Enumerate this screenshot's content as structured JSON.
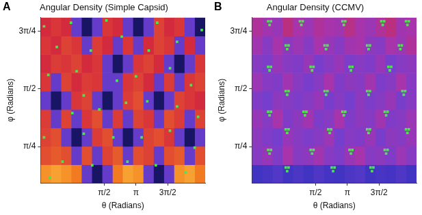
{
  "chart_data": [
    {
      "type": "heatmap",
      "annotation": "A",
      "title": "Angular Density (Simple Capsid)",
      "x_label": "θ (Radians)",
      "y_label": "φ (Radians)",
      "xlim": [
        -1.57,
        6.56
      ],
      "ylim": [
        0.29,
        2.54
      ],
      "xticks": [
        {
          "value": 1.5708,
          "label": "π/2"
        },
        {
          "value": 3.1416,
          "label": "π"
        },
        {
          "value": 4.7124,
          "label": "3π/2"
        }
      ],
      "yticks": [
        {
          "value": 0.7854,
          "label": "π/4"
        },
        {
          "value": 1.5708,
          "label": "π/2"
        },
        {
          "value": 2.3562,
          "label": "3π/4"
        }
      ],
      "grid": false,
      "cells": {
        "x_edges": [
          -1.57,
          -1.06,
          -0.55,
          -0.05,
          0.46,
          0.97,
          1.48,
          1.99,
          2.49,
          3.0,
          3.51,
          4.02,
          4.53,
          5.03,
          5.54,
          6.05,
          6.56
        ],
        "y_edges": [
          0.29,
          0.54,
          0.79,
          1.04,
          1.29,
          1.54,
          1.79,
          2.04,
          2.29,
          2.54
        ],
        "values": [
          [
            0.88,
            0.9,
            0.88,
            0.85,
            0.4,
            0.05,
            0.4,
            0.85,
            0.9,
            0.88,
            0.4,
            0.05,
            0.4,
            0.88,
            0.9,
            0.85
          ],
          [
            0.78,
            0.8,
            0.78,
            0.4,
            0.78,
            0.4,
            0.76,
            0.8,
            0.4,
            0.78,
            0.76,
            0.4,
            0.78,
            0.8,
            0.4,
            0.78
          ],
          [
            0.76,
            0.78,
            0.4,
            0.05,
            0.4,
            0.75,
            0.78,
            0.4,
            0.05,
            0.4,
            0.76,
            0.78,
            0.74,
            0.4,
            0.05,
            0.4
          ],
          [
            0.75,
            0.4,
            0.76,
            0.4,
            0.74,
            0.78,
            0.4,
            0.75,
            0.4,
            0.76,
            0.74,
            0.4,
            0.78,
            0.75,
            0.4,
            0.76
          ],
          [
            0.4,
            0.05,
            0.4,
            0.74,
            0.76,
            0.4,
            0.05,
            0.4,
            0.75,
            0.78,
            0.4,
            0.05,
            0.4,
            0.76,
            0.74,
            0.72
          ],
          [
            0.74,
            0.4,
            0.76,
            0.72,
            0.75,
            0.74,
            0.4,
            0.4,
            0.74,
            0.76,
            0.72,
            0.4,
            0.75,
            0.4,
            0.74,
            0.76
          ],
          [
            0.72,
            0.75,
            0.74,
            0.76,
            0.72,
            0.74,
            0.4,
            0.05,
            0.4,
            0.74,
            0.76,
            0.72,
            0.4,
            0.05,
            0.4,
            0.74
          ],
          [
            0.74,
            0.72,
            0.76,
            0.74,
            0.4,
            0.75,
            0.72,
            0.4,
            0.74,
            0.4,
            0.72,
            0.76,
            0.74,
            0.4,
            0.72,
            0.4
          ],
          [
            0.72,
            0.74,
            0.72,
            0.4,
            0.05,
            0.4,
            0.74,
            0.72,
            0.4,
            0.05,
            0.4,
            0.76,
            0.72,
            0.74,
            0.4,
            0.05
          ]
        ]
      },
      "series": [
        {
          "type": "scatter",
          "color": "#4ce64c",
          "marker": "square",
          "x": [
            -1.4,
            -0.07,
            1.68,
            -0.77,
            0.91,
            2.44,
            4.19,
            5.17,
            6.39,
            -1.19,
            0.21,
            0.56,
            2.2,
            3.14,
            3.77,
            4.82,
            5.86,
            0.0,
            1.33,
            2.65,
            3.7,
            5.17,
            6.21,
            -1.4,
            0.56,
            2.02,
            3.42,
            4.82,
            6.04,
            -0.49,
            0.98,
            2.72,
            4.12,
            5.58,
            -1.12
          ],
          "values": [
            2.42,
            2.47,
            2.5,
            2.14,
            2.09,
            2.28,
            2.47,
            2.21,
            2.37,
            1.76,
            1.81,
            1.48,
            1.68,
            1.74,
            2.09,
            1.85,
            1.62,
            1.24,
            1.29,
            1.38,
            1.4,
            1.33,
            1.19,
            0.91,
            0.96,
            0.91,
            0.91,
            1.0,
            0.77,
            0.58,
            0.53,
            0.58,
            0.53,
            0.43,
            0.36
          ]
        }
      ]
    },
    {
      "type": "heatmap",
      "annotation": "B",
      "title": "Angular Density (CCMV)",
      "x_label": "θ (Radians)",
      "y_label": "φ (Radians)",
      "xlim": [
        -1.57,
        6.56
      ],
      "ylim": [
        0.29,
        2.54
      ],
      "xticks": [
        {
          "value": 1.5708,
          "label": "π/2"
        },
        {
          "value": 3.1416,
          "label": "π"
        },
        {
          "value": 4.7124,
          "label": "3π/2"
        }
      ],
      "yticks": [
        {
          "value": 0.7854,
          "label": "π/4"
        },
        {
          "value": 1.5708,
          "label": "π/2"
        },
        {
          "value": 2.3562,
          "label": "3π/4"
        }
      ],
      "grid": false,
      "cells": {
        "x_edges": [
          -1.57,
          -1.06,
          -0.55,
          -0.05,
          0.46,
          0.97,
          1.48,
          1.99,
          2.49,
          3.0,
          3.51,
          4.02,
          4.53,
          5.03,
          5.54,
          6.05,
          6.56
        ],
        "y_edges": [
          0.29,
          0.54,
          0.79,
          1.04,
          1.29,
          1.54,
          1.79,
          2.04,
          2.29,
          2.54
        ],
        "values": [
          [
            0.3,
            0.32,
            0.35,
            0.3,
            0.33,
            0.3,
            0.34,
            0.31,
            0.3,
            0.33,
            0.35,
            0.3,
            0.32,
            0.31,
            0.34,
            0.3
          ],
          [
            0.5,
            0.55,
            0.48,
            0.6,
            0.5,
            0.52,
            0.58,
            0.5,
            0.47,
            0.55,
            0.6,
            0.5,
            0.52,
            0.48,
            0.56,
            0.5
          ],
          [
            0.52,
            0.48,
            0.45,
            0.55,
            0.5,
            0.47,
            0.5,
            0.56,
            0.45,
            0.5,
            0.48,
            0.55,
            0.46,
            0.52,
            0.5,
            0.55
          ],
          [
            0.55,
            0.5,
            0.6,
            0.48,
            0.52,
            0.58,
            0.47,
            0.5,
            0.6,
            0.48,
            0.52,
            0.5,
            0.58,
            0.48,
            0.5,
            0.56
          ],
          [
            0.48,
            0.45,
            0.52,
            0.5,
            0.47,
            0.5,
            0.55,
            0.46,
            0.5,
            0.45,
            0.52,
            0.47,
            0.5,
            0.55,
            0.46,
            0.5
          ],
          [
            0.56,
            0.5,
            0.48,
            0.58,
            0.5,
            0.46,
            0.5,
            0.6,
            0.48,
            0.52,
            0.5,
            0.58,
            0.47,
            0.5,
            0.6,
            0.5
          ],
          [
            0.5,
            0.47,
            0.55,
            0.5,
            0.48,
            0.55,
            0.46,
            0.5,
            0.55,
            0.47,
            0.5,
            0.48,
            0.55,
            0.46,
            0.5,
            0.52
          ],
          [
            0.58,
            0.5,
            0.6,
            0.52,
            0.56,
            0.5,
            0.6,
            0.55,
            0.5,
            0.58,
            0.6,
            0.52,
            0.5,
            0.6,
            0.56,
            0.62
          ],
          [
            0.62,
            0.58,
            0.55,
            0.65,
            0.6,
            0.56,
            0.62,
            0.6,
            0.58,
            0.64,
            0.6,
            0.56,
            0.62,
            0.65,
            0.58,
            0.6
          ]
        ]
      },
      "series": [
        {
          "type": "scatter",
          "color": "#4ce64c",
          "marker": "square",
          "x": [
            -0.77,
            -0.63,
            -0.7,
            0.8,
            0.94,
            0.87,
            2.9,
            3.04,
            2.97,
            4.82,
            4.96,
            4.89,
            6.04,
            6.18,
            6.11,
            0.1,
            0.24,
            0.17,
            2.02,
            2.16,
            2.09,
            4.12,
            4.26,
            4.19,
            5.69,
            5.83,
            5.76,
            -0.77,
            -0.63,
            -0.7,
            1.33,
            1.47,
            1.4,
            3.25,
            3.39,
            3.32,
            5.17,
            5.31,
            5.24,
            0.1,
            0.24,
            0.17,
            2.02,
            2.16,
            2.09,
            4.12,
            4.26,
            4.19,
            5.86,
            6.0,
            5.93,
            -0.77,
            -0.63,
            -0.7,
            0.98,
            1.12,
            1.05,
            2.9,
            3.04,
            2.97,
            4.99,
            5.13,
            5.06,
            0.1,
            0.24,
            0.17,
            2.2,
            2.34,
            2.27,
            4.12,
            4.26,
            4.19,
            6.04,
            6.18,
            6.11,
            -0.77,
            -0.63,
            -0.7,
            1.33,
            1.47,
            1.4,
            3.25,
            3.39,
            3.32,
            4.99,
            5.13,
            5.06,
            0.1,
            0.24,
            0.17,
            2.37,
            2.51,
            2.44,
            4.29,
            4.43,
            4.36
          ],
          "values": [
            2.49,
            2.49,
            2.44,
            2.49,
            2.49,
            2.44,
            2.49,
            2.49,
            2.44,
            2.49,
            2.49,
            2.44,
            2.49,
            2.49,
            2.44,
            2.16,
            2.16,
            2.11,
            2.16,
            2.16,
            2.11,
            2.16,
            2.16,
            2.11,
            2.16,
            2.16,
            2.11,
            1.87,
            1.87,
            1.82,
            1.87,
            1.87,
            1.82,
            1.87,
            1.87,
            1.82,
            1.87,
            1.87,
            1.82,
            1.54,
            1.54,
            1.49,
            1.54,
            1.54,
            1.49,
            1.54,
            1.54,
            1.49,
            1.54,
            1.54,
            1.49,
            1.26,
            1.26,
            1.21,
            1.26,
            1.26,
            1.21,
            1.26,
            1.26,
            1.21,
            1.26,
            1.26,
            1.21,
            1.02,
            1.02,
            0.97,
            1.02,
            1.02,
            0.97,
            1.02,
            1.02,
            0.97,
            1.02,
            1.02,
            0.97,
            0.74,
            0.74,
            0.69,
            0.74,
            0.74,
            0.69,
            0.74,
            0.74,
            0.69,
            0.74,
            0.74,
            0.69,
            0.5,
            0.5,
            0.45,
            0.5,
            0.5,
            0.45,
            0.5,
            0.5,
            0.45
          ]
        }
      ]
    }
  ]
}
